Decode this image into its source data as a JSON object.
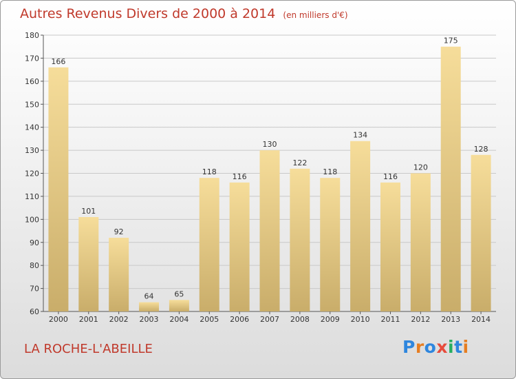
{
  "header": {
    "title": "Autres Revenus Divers de 2000 à 2014",
    "unit": "(en milliers d'€)"
  },
  "footer": {
    "commune": "LA ROCHE-L'ABEILLE",
    "logo": "Proxiti"
  },
  "colors": {
    "title": "#c0392b",
    "bar_light": "#f6dd9a",
    "bar_dark": "#c9ad6a",
    "grid": "#c8c8c8",
    "logo": [
      "#2e86de",
      "#e67e22",
      "#2e86de",
      "#e74c3c",
      "#27ae60",
      "#2e86de",
      "#e67e22"
    ]
  },
  "chart_data": {
    "type": "bar",
    "title": "Autres Revenus Divers de 2000 à 2014",
    "subtitle": "(en milliers d'€)",
    "categories": [
      "2000",
      "2001",
      "2002",
      "2003",
      "2004",
      "2005",
      "2006",
      "2007",
      "2008",
      "2009",
      "2010",
      "2011",
      "2012",
      "2013",
      "2014"
    ],
    "values": [
      166,
      101,
      92,
      64,
      65,
      118,
      116,
      130,
      122,
      118,
      134,
      116,
      120,
      175,
      128
    ],
    "ylim": [
      60,
      180
    ],
    "yticks": [
      60,
      70,
      80,
      90,
      100,
      110,
      120,
      130,
      140,
      150,
      160,
      170,
      180
    ],
    "grid": true,
    "xlabel": "",
    "ylabel": ""
  }
}
